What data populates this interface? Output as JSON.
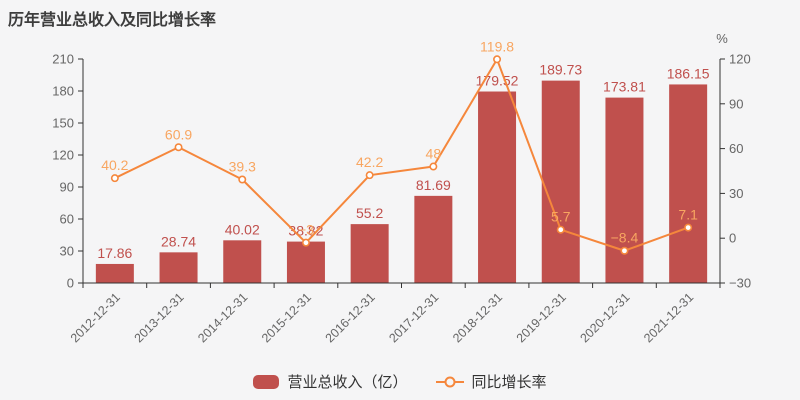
{
  "title": "历年营业总收入及同比增长率",
  "colors": {
    "background": "#f5f5f6",
    "bar": "#c0504d",
    "bar_label": "#c0504d",
    "line": "#f5873c",
    "line_label": "#f8a661",
    "axis_line": "#333333",
    "tick_label": "#666666",
    "title": "#3d3d3d",
    "legend_text": "#333333"
  },
  "legend": {
    "items": [
      {
        "label": "营业总收入（亿）",
        "marker": "bar"
      },
      {
        "label": "同比增长率",
        "marker": "line"
      }
    ]
  },
  "chart_data": {
    "type": "bar+line",
    "title": "历年营业总收入及同比增长率",
    "categories": [
      "2012-12-31",
      "2013-12-31",
      "2014-12-31",
      "2015-12-31",
      "2016-12-31",
      "2017-12-31",
      "2018-12-31",
      "2019-12-31",
      "2020-12-31",
      "2021-12-31"
    ],
    "series": [
      {
        "name": "营业总收入（亿）",
        "type": "bar",
        "axis": "left",
        "values": [
          17.86,
          28.74,
          40.02,
          38.82,
          55.2,
          81.69,
          179.52,
          189.73,
          173.81,
          186.15
        ],
        "labels": [
          "17.86",
          "28.74",
          "40.02",
          "38.82",
          "55.2",
          "81.69",
          "179.52",
          "189.73",
          "173.81",
          "186.15"
        ]
      },
      {
        "name": "同比增长率",
        "type": "line",
        "axis": "right",
        "values": [
          40.2,
          60.9,
          39.3,
          -3,
          42.2,
          48,
          119.8,
          5.7,
          -8.4,
          7.1
        ],
        "labels": [
          "40.2",
          "60.9",
          "39.3",
          "−3",
          "42.2",
          "48",
          "119.8",
          "5.7",
          "−8.4",
          "7.1"
        ]
      }
    ],
    "left_axis": {
      "min": 0,
      "max": 210,
      "interval": 30,
      "tick_labels": [
        "0",
        "30",
        "60",
        "90",
        "120",
        "150",
        "180",
        "210"
      ]
    },
    "right_axis": {
      "min": -30,
      "max": 120,
      "interval": 30,
      "unit": "%",
      "tick_labels": [
        "−30",
        "0",
        "30",
        "60",
        "90",
        "120"
      ]
    },
    "grid": false,
    "legend_position": "bottom",
    "x_label_rotation": -45
  }
}
